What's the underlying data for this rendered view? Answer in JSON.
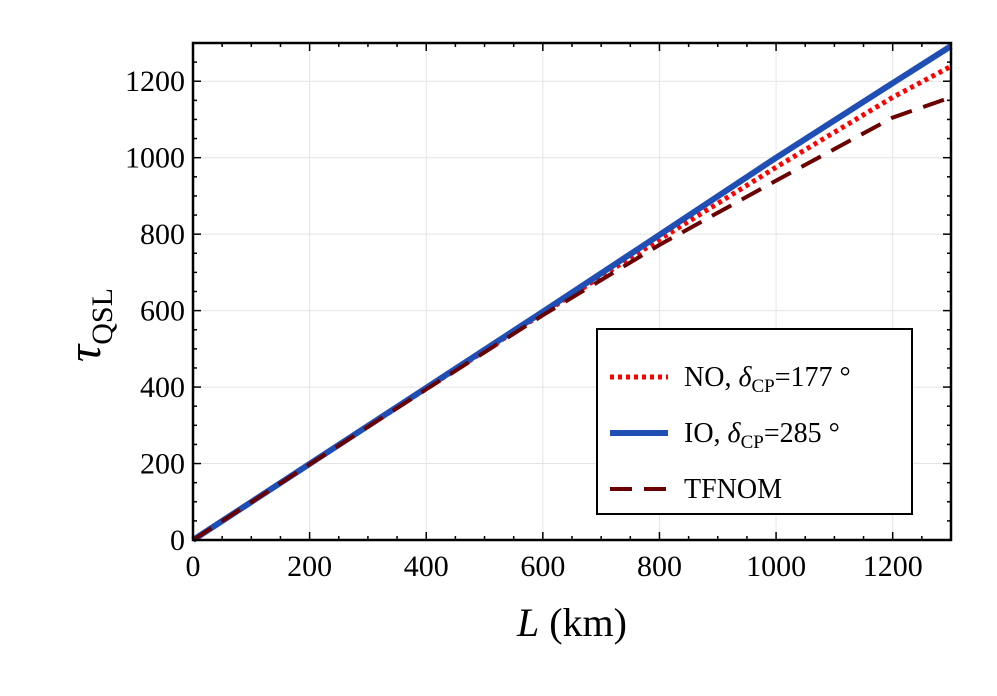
{
  "chart_data": {
    "type": "line",
    "xlabel": {
      "main": "L",
      "unit": " (km)"
    },
    "ylabel": {
      "main": "τ",
      "sub": "QSL"
    },
    "xlim": [
      0,
      1300
    ],
    "ylim": [
      0,
      1300
    ],
    "xticks": [
      0,
      200,
      400,
      600,
      800,
      1000,
      1200
    ],
    "yticks": [
      0,
      200,
      400,
      600,
      800,
      1000,
      1200
    ],
    "grid": true,
    "legend_position": "bottom-right",
    "x": [
      0,
      200,
      400,
      600,
      800,
      1000,
      1200,
      1300
    ],
    "series": [
      {
        "name": "NO, δCP=177 °",
        "label_pre": "NO, ",
        "label_sym": "δ",
        "label_sub": "CP",
        "label_post": "=177 °",
        "color": "#ff0000",
        "style": "dotted",
        "values": [
          0,
          199,
          396,
          593,
          786,
          975,
          1158,
          1239
        ]
      },
      {
        "name": "IO, δCP=285 °",
        "label_pre": "IO, ",
        "label_sym": "δ",
        "label_sub": "CP",
        "label_post": "=285 °",
        "color": "#1f4fb4",
        "style": "solid",
        "values": [
          0,
          199,
          398,
          597,
          798,
          1000,
          1195,
          1292
        ]
      },
      {
        "name": "TFNOM",
        "label_pre": "TFNOM",
        "label_sym": "",
        "label_sub": "",
        "label_post": "",
        "color": "#6b0000",
        "style": "dashed",
        "values": [
          0,
          198,
          394,
          588,
          772,
          940,
          1105,
          1158
        ]
      }
    ]
  }
}
